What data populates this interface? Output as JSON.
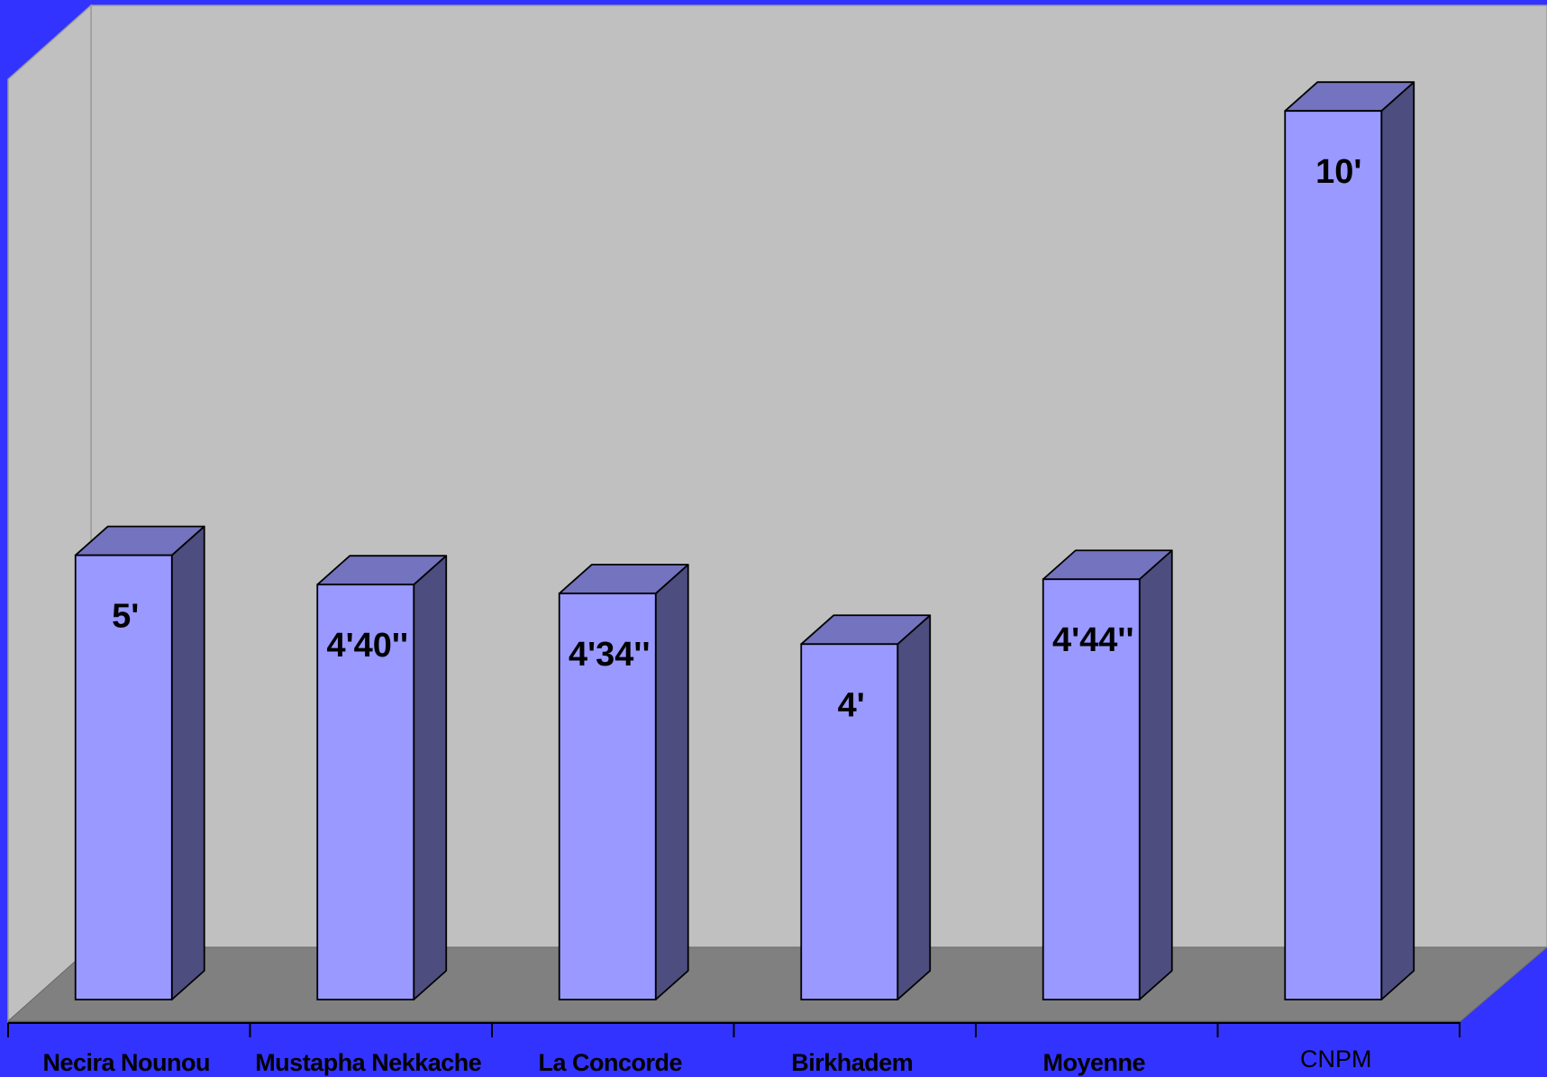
{
  "chart_data": {
    "type": "bar",
    "style": "3d-column",
    "categories": [
      "Necira Nounou",
      "Mustapha Nekkache",
      "La Concorde",
      "Birkhadem",
      "Moyenne",
      "CNPM"
    ],
    "values": [
      5.0,
      4.67,
      4.57,
      4.0,
      4.73,
      10.0
    ],
    "data_labels": [
      "5'",
      "4'40''",
      "4'34''",
      "4'",
      "4'44''",
      "10'"
    ],
    "label_bold": [
      true,
      true,
      true,
      true,
      true,
      false
    ],
    "ylim": [
      0,
      10.6
    ],
    "grid": false,
    "legend": "none",
    "title": "",
    "xlabel": "",
    "ylabel": ""
  },
  "colors": {
    "background": "#3333ff",
    "back_wall": "#c0c0c0",
    "side_wall": "#c0c0c0",
    "floor": "#808080",
    "bar_front": "#9999ff",
    "bar_top": "#7373bf",
    "bar_side": "#4d4d80",
    "outline": "#000000"
  }
}
